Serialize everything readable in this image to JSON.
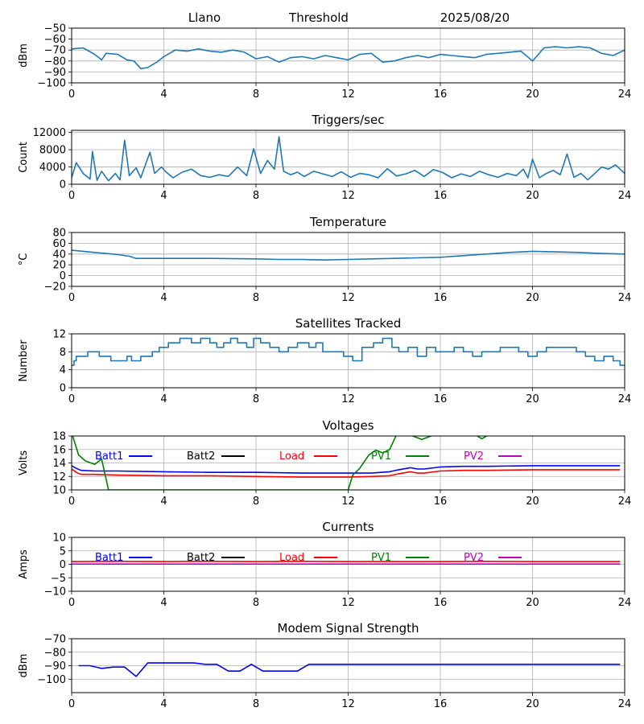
{
  "header": {
    "site": "Llano",
    "mode": "Threshold",
    "date": "2025/08/20"
  },
  "colors": {
    "default_line": "#1f77b4",
    "grid": "#b0b0b0",
    "batt1": "#0000ff",
    "batt2": "#000000",
    "load": "#ff0000",
    "pv1": "#008000",
    "pv2": "#bf00bf"
  },
  "chart_data": [
    {
      "id": "threshold",
      "type": "line",
      "title": "",
      "xlabel": "",
      "ylabel": "dBm",
      "xlim": [
        0,
        24
      ],
      "ylim": [
        -100,
        -50
      ],
      "xticks": [
        0,
        4,
        8,
        12,
        16,
        20,
        24
      ],
      "yticks": [
        -100,
        -90,
        -80,
        -70,
        -60,
        -50
      ],
      "ytick_labels": [
        "−100",
        "−90",
        "−80",
        "−70",
        "−60",
        "−50"
      ],
      "series": [
        {
          "name": "Threshold",
          "color": "default_line",
          "x": [
            0,
            0.5,
            1,
            1.3,
            1.5,
            2,
            2.4,
            2.7,
            3,
            3.3,
            3.7,
            4,
            4.5,
            5,
            5.5,
            6,
            6.5,
            7,
            7.5,
            8,
            8.5,
            9,
            9.5,
            10,
            10.5,
            11,
            11.5,
            12,
            12.5,
            13,
            13.5,
            14,
            14.5,
            15,
            15.5,
            16,
            16.5,
            17,
            17.5,
            18,
            18.5,
            19,
            19.5,
            20,
            20.5,
            21,
            21.5,
            22,
            22.5,
            23,
            23.5,
            24
          ],
          "y": [
            -69,
            -68,
            -74,
            -79,
            -73,
            -74,
            -79,
            -80,
            -87,
            -86,
            -81,
            -76,
            -70,
            -71,
            -69,
            -71,
            -72,
            -70,
            -72,
            -78,
            -76,
            -81,
            -77,
            -76,
            -78,
            -75,
            -77,
            -79,
            -74,
            -73,
            -81,
            -80,
            -77,
            -75,
            -77,
            -74,
            -75,
            -76,
            -77,
            -74,
            -73,
            -72,
            -71,
            -80,
            -68,
            -67,
            -68,
            -67,
            -68,
            -73,
            -75,
            -70
          ]
        }
      ]
    },
    {
      "id": "triggers",
      "type": "line",
      "title": "Triggers/sec",
      "xlabel": "",
      "ylabel": "Count",
      "xlim": [
        0,
        24
      ],
      "ylim": [
        0,
        12500
      ],
      "xticks": [
        0,
        4,
        8,
        12,
        16,
        20,
        24
      ],
      "yticks": [
        0,
        4000,
        8000,
        12000
      ],
      "ytick_labels": [
        "0",
        "4000",
        "8000",
        "12000"
      ],
      "series": [
        {
          "name": "Triggers",
          "color": "default_line",
          "x": [
            0,
            0.2,
            0.5,
            0.8,
            0.9,
            1.1,
            1.3,
            1.6,
            1.9,
            2.1,
            2.3,
            2.5,
            2.8,
            3.0,
            3.2,
            3.4,
            3.6,
            3.9,
            4.1,
            4.4,
            4.8,
            5.2,
            5.6,
            6.0,
            6.4,
            6.8,
            7.2,
            7.6,
            7.9,
            8.2,
            8.5,
            8.8,
            9.0,
            9.2,
            9.5,
            9.8,
            10.1,
            10.5,
            10.9,
            11.3,
            11.7,
            12.1,
            12.5,
            12.9,
            13.3,
            13.7,
            14.1,
            14.5,
            14.9,
            15.3,
            15.7,
            16.1,
            16.5,
            16.9,
            17.3,
            17.7,
            18.1,
            18.5,
            18.9,
            19.3,
            19.6,
            19.8,
            20.0,
            20.3,
            20.6,
            20.9,
            21.2,
            21.5,
            21.8,
            22.1,
            22.4,
            22.7,
            23.0,
            23.3,
            23.6,
            24
          ],
          "y": [
            1500,
            5000,
            2500,
            1200,
            7600,
            900,
            3000,
            800,
            2500,
            1000,
            10200,
            2000,
            3800,
            1500,
            4500,
            7400,
            2500,
            4000,
            2800,
            1500,
            2800,
            3500,
            2000,
            1600,
            2200,
            1800,
            4000,
            2000,
            8200,
            2500,
            5500,
            3500,
            11000,
            3000,
            2200,
            2800,
            1800,
            3000,
            2400,
            1800,
            2900,
            1600,
            2500,
            2200,
            1500,
            3600,
            1900,
            2400,
            3200,
            1800,
            3400,
            2700,
            1500,
            2400,
            1800,
            3000,
            2200,
            1600,
            2500,
            2000,
            3500,
            1500,
            5800,
            1500,
            2500,
            3200,
            2200,
            7000,
            1600,
            2500,
            1000,
            2500,
            4000,
            3500,
            4500,
            2500
          ]
        }
      ]
    },
    {
      "id": "temperature",
      "type": "line",
      "title": "Temperature",
      "xlabel": "",
      "ylabel": "°C",
      "xlim": [
        0,
        24
      ],
      "ylim": [
        -20,
        80
      ],
      "xticks": [
        0,
        4,
        8,
        12,
        16,
        20,
        24
      ],
      "yticks": [
        -20,
        0,
        20,
        40,
        60,
        80
      ],
      "ytick_labels": [
        "−20",
        "0",
        "20",
        "40",
        "60",
        "80"
      ],
      "series": [
        {
          "name": "Temperature",
          "color": "default_line",
          "x": [
            0,
            0.5,
            1,
            1.5,
            2,
            2.5,
            2.8,
            3,
            4,
            6,
            8,
            9,
            10,
            11,
            12,
            13,
            14,
            15,
            16,
            17,
            18,
            19,
            20,
            21,
            22,
            23,
            24
          ],
          "y": [
            47,
            45,
            43,
            41,
            39,
            36,
            32,
            32,
            32,
            32,
            31,
            30,
            30,
            29,
            30,
            31,
            32,
            33,
            34,
            37,
            40,
            43,
            45,
            44,
            43,
            41,
            40
          ]
        }
      ]
    },
    {
      "id": "satellites",
      "type": "line",
      "title": "Satellites Tracked",
      "xlabel": "",
      "ylabel": "Number",
      "xlim": [
        0,
        24
      ],
      "ylim": [
        0,
        12
      ],
      "xticks": [
        0,
        4,
        8,
        12,
        16,
        20,
        24
      ],
      "yticks": [
        0,
        4,
        8,
        12
      ],
      "ytick_labels": [
        "0",
        "4",
        "8",
        "12"
      ],
      "series": [
        {
          "name": "Satellites",
          "color": "default_line",
          "step": true,
          "x": [
            0,
            0.1,
            0.2,
            0.5,
            0.7,
            1.2,
            1.7,
            2.4,
            2.6,
            3.0,
            3.5,
            3.8,
            4.2,
            4.7,
            5.2,
            5.6,
            6.0,
            6.3,
            6.6,
            6.9,
            7.2,
            7.6,
            7.9,
            8.2,
            8.6,
            9.0,
            9.4,
            9.8,
            10.3,
            10.6,
            10.9,
            11.3,
            11.8,
            12.2,
            12.6,
            13.1,
            13.5,
            13.9,
            14.2,
            14.6,
            15.0,
            15.4,
            15.8,
            16.2,
            16.6,
            17.0,
            17.4,
            17.8,
            18.2,
            18.6,
            19.0,
            19.4,
            19.8,
            20.2,
            20.6,
            21.0,
            21.4,
            21.9,
            22.3,
            22.7,
            23.1,
            23.5,
            23.8,
            24
          ],
          "y": [
            5,
            6,
            7,
            7,
            8,
            7,
            6,
            7,
            6,
            7,
            8,
            9,
            10,
            11,
            10,
            11,
            10,
            9,
            10,
            11,
            10,
            9,
            11,
            10,
            9,
            8,
            9,
            10,
            9,
            10,
            8,
            8,
            7,
            6,
            9,
            10,
            11,
            9,
            8,
            9,
            7,
            9,
            8,
            8,
            9,
            8,
            7,
            8,
            8,
            9,
            9,
            8,
            7,
            8,
            9,
            9,
            9,
            8,
            7,
            6,
            7,
            6,
            5,
            5
          ]
        }
      ]
    },
    {
      "id": "voltages",
      "type": "line",
      "title": "Voltages",
      "xlabel": "",
      "ylabel": "Volts",
      "xlim": [
        0,
        24
      ],
      "ylim": [
        10,
        18
      ],
      "xticks": [
        0,
        4,
        8,
        12,
        16,
        20,
        24
      ],
      "yticks": [
        10,
        12,
        14,
        16,
        18
      ],
      "ytick_labels": [
        "10",
        "12",
        "14",
        "16",
        "18"
      ],
      "legend": [
        "Batt1",
        "Batt2",
        "Load",
        "PV1",
        "PV2"
      ],
      "series": [
        {
          "name": "Batt1",
          "color": "batt1",
          "x": [
            0,
            0.2,
            0.4,
            1,
            2,
            4,
            6,
            8,
            10,
            12,
            13,
            13.8,
            14.2,
            14.7,
            15,
            15.3,
            16,
            17,
            18,
            20,
            22,
            23.8
          ],
          "y": [
            13.6,
            13.2,
            12.9,
            12.8,
            12.8,
            12.7,
            12.6,
            12.6,
            12.5,
            12.5,
            12.5,
            12.7,
            13.0,
            13.3,
            13.1,
            13.1,
            13.4,
            13.5,
            13.5,
            13.6,
            13.6,
            13.6
          ]
        },
        {
          "name": "Load",
          "color": "load",
          "x": [
            0,
            0.2,
            0.4,
            1,
            2,
            4,
            6,
            8,
            10,
            12,
            13,
            13.8,
            14.2,
            14.7,
            15,
            15.3,
            16,
            17,
            18,
            20,
            22,
            23.8
          ],
          "y": [
            13.1,
            12.6,
            12.3,
            12.3,
            12.2,
            12.1,
            12.1,
            12.0,
            11.9,
            11.9,
            12.0,
            12.1,
            12.4,
            12.7,
            12.5,
            12.5,
            12.8,
            12.9,
            12.9,
            13.0,
            13.0,
            13.0
          ]
        },
        {
          "name": "PV1",
          "color": "pv1",
          "x": [
            0,
            0.3,
            0.6,
            1.0,
            1.3,
            1.6,
            12.0,
            12.2,
            12.5,
            12.9,
            13.2,
            13.5,
            13.8,
            14.1
          ],
          "y": [
            18.5,
            15.2,
            14.3,
            13.8,
            14.6,
            10.0,
            10.0,
            12.2,
            13.2,
            15.2,
            15.9,
            15.5,
            16.0,
            18.2
          ]
        },
        {
          "name": "PV1",
          "color": "pv1",
          "x": [
            14.8,
            15.2,
            15.6
          ],
          "y": [
            18.0,
            17.5,
            18.0
          ]
        },
        {
          "name": "PV1",
          "color": "pv1",
          "x": [
            17.6,
            17.8,
            18.0
          ],
          "y": [
            18.0,
            17.6,
            18.0
          ]
        }
      ]
    },
    {
      "id": "currents",
      "type": "line",
      "title": "Currents",
      "xlabel": "",
      "ylabel": "Amps",
      "xlim": [
        0,
        24
      ],
      "ylim": [
        -10,
        10
      ],
      "xticks": [
        0,
        4,
        8,
        12,
        16,
        20,
        24
      ],
      "yticks": [
        -10,
        -5,
        0,
        5,
        10
      ],
      "ytick_labels": [
        "−10",
        "−5",
        "0",
        "5",
        "10"
      ],
      "legend": [
        "Batt1",
        "Batt2",
        "Load",
        "PV1",
        "PV2"
      ],
      "series": [
        {
          "name": "Load",
          "color": "load",
          "x": [
            0,
            2,
            4,
            6,
            8,
            10,
            12,
            14,
            16,
            18,
            20,
            22,
            23.8
          ],
          "y": [
            1.0,
            1.1,
            1.0,
            1.1,
            1.0,
            1.1,
            1.0,
            1.0,
            1.0,
            1.1,
            1.0,
            1.0,
            1.0
          ]
        },
        {
          "name": "PV2",
          "color": "pv2",
          "x": [
            0,
            23.8
          ],
          "y": [
            0.1,
            0.1
          ]
        }
      ]
    },
    {
      "id": "modem",
      "type": "line",
      "title": "Modem Signal Strength",
      "xlabel": "",
      "ylabel": "dBm",
      "xlim": [
        0,
        24
      ],
      "ylim": [
        -110,
        -70
      ],
      "xticks": [
        0,
        4,
        8,
        12,
        16,
        20,
        24
      ],
      "yticks": [
        -100,
        -90,
        -80,
        -70
      ],
      "ytick_labels": [
        "−100",
        "−90",
        "−80",
        "−70"
      ],
      "xtick_labels_shown": true,
      "series": [
        {
          "name": "Modem",
          "color": "batt1",
          "x": [
            0.3,
            0.8,
            1.3,
            1.8,
            2.3,
            2.8,
            3.3,
            3.8,
            4.3,
            4.8,
            5.3,
            5.8,
            6.3,
            6.8,
            7.3,
            7.8,
            8.3,
            8.8,
            9.3,
            9.8,
            10.3,
            10.8,
            23.8
          ],
          "y": [
            -90,
            -90,
            -92,
            -91,
            -91,
            -98,
            -88,
            -88,
            -88,
            -88,
            -88,
            -89,
            -89,
            -94,
            -94,
            -89,
            -94,
            -94,
            -94,
            -94,
            -89,
            -89,
            -89
          ]
        }
      ]
    }
  ]
}
